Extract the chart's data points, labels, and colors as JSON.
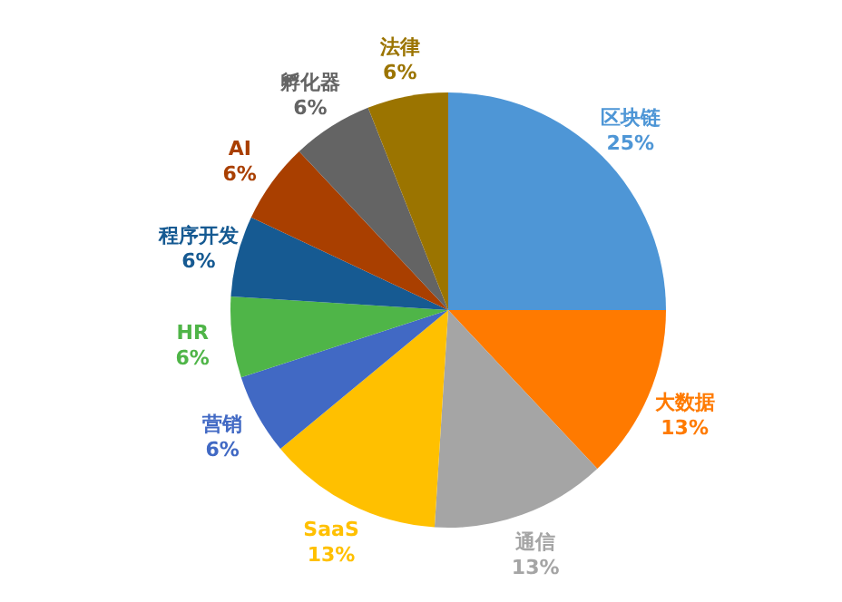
{
  "chart_data": {
    "type": "pie",
    "categories": [
      "区块链",
      "大数据",
      "通信",
      "SaaS",
      "营销",
      "HR",
      "程序开发",
      "AI",
      "孵化器",
      "法律"
    ],
    "values": [
      25,
      13,
      13,
      13,
      6,
      6,
      6,
      6,
      6,
      6
    ],
    "value_labels": [
      "25%",
      "13%",
      "13%",
      "13%",
      "6%",
      "6%",
      "6%",
      "6%",
      "6%",
      "6%"
    ],
    "colors": [
      "#4e96d6",
      "#ff7a00",
      "#a5a5a5",
      "#ffc000",
      "#4169c4",
      "#4fb548",
      "#165a92",
      "#a93f00",
      "#646464",
      "#9b7400"
    ],
    "legend": false
  }
}
